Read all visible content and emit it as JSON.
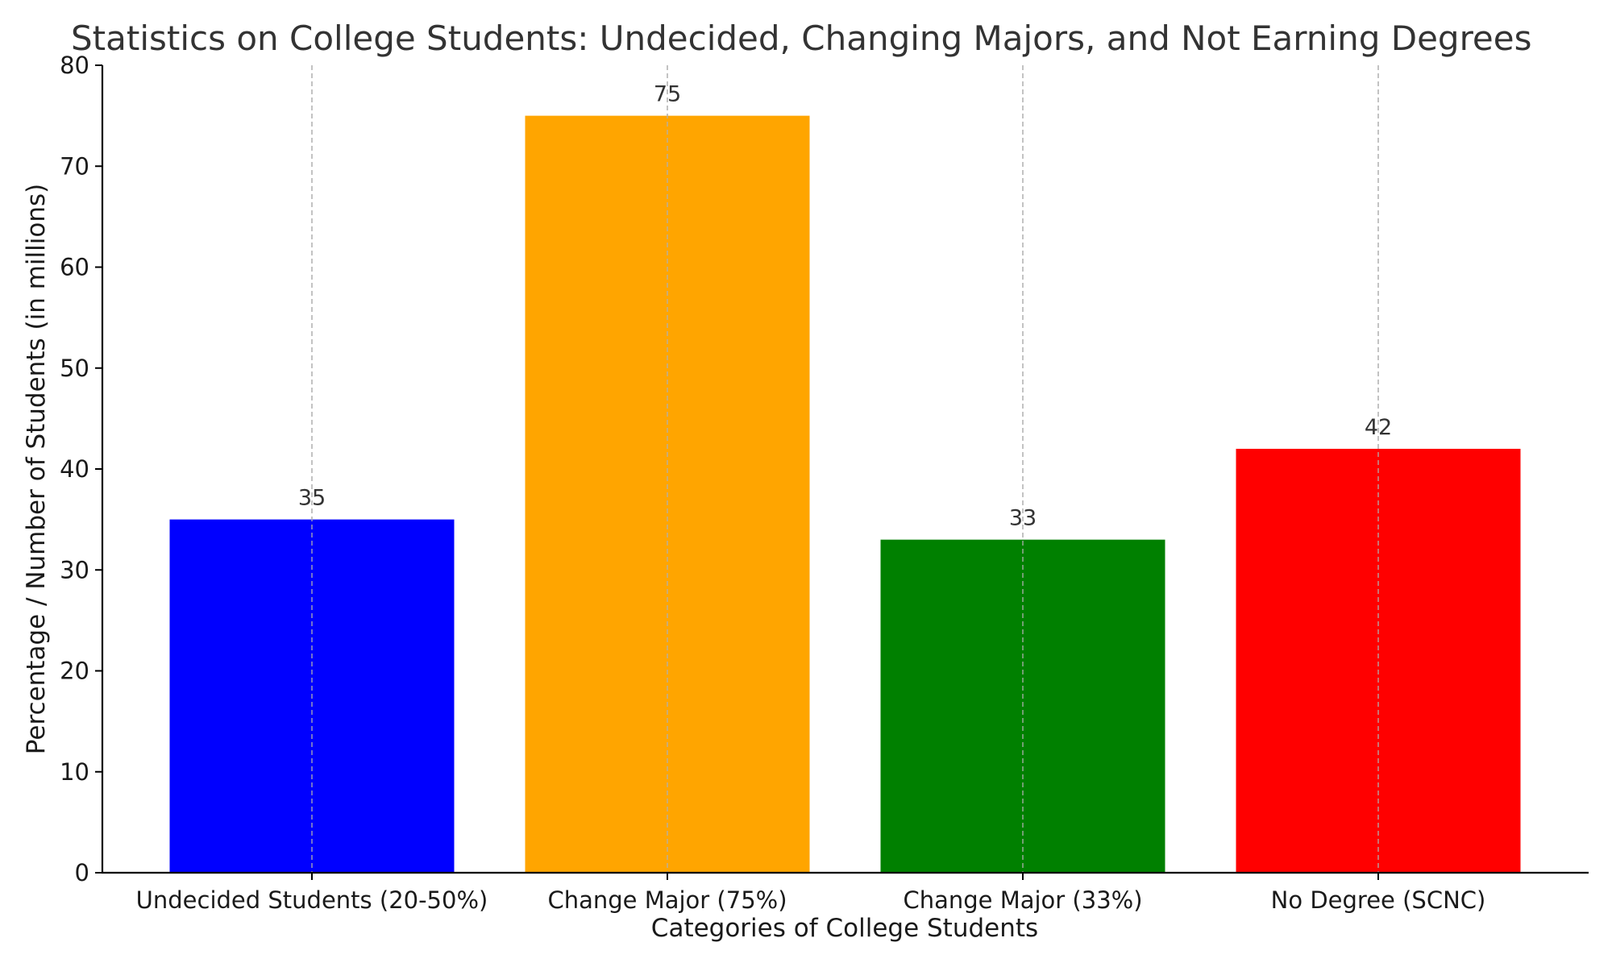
{
  "chart_data": {
    "type": "bar",
    "title": "Statistics on College Students: Undecided, Changing Majors, and Not Earning Degrees",
    "xlabel": "Categories of College Students",
    "ylabel": "Percentage / Number of Students (in millions)",
    "categories": [
      "Undecided Students (20-50%)",
      "Change Major (75%)",
      "Change Major (33%)",
      "No Degree (SCNC)"
    ],
    "values": [
      35,
      75,
      33,
      42
    ],
    "data_labels": [
      "35",
      "75",
      "33",
      "42"
    ],
    "colors": [
      "#0000ff",
      "#ffa500",
      "#008000",
      "#ff0000"
    ],
    "ylim": [
      0,
      80
    ],
    "yticks": [
      0,
      10,
      20,
      30,
      40,
      50,
      60,
      70,
      80
    ],
    "grid": "vertical dashed lines at category centers",
    "legend": "none"
  }
}
